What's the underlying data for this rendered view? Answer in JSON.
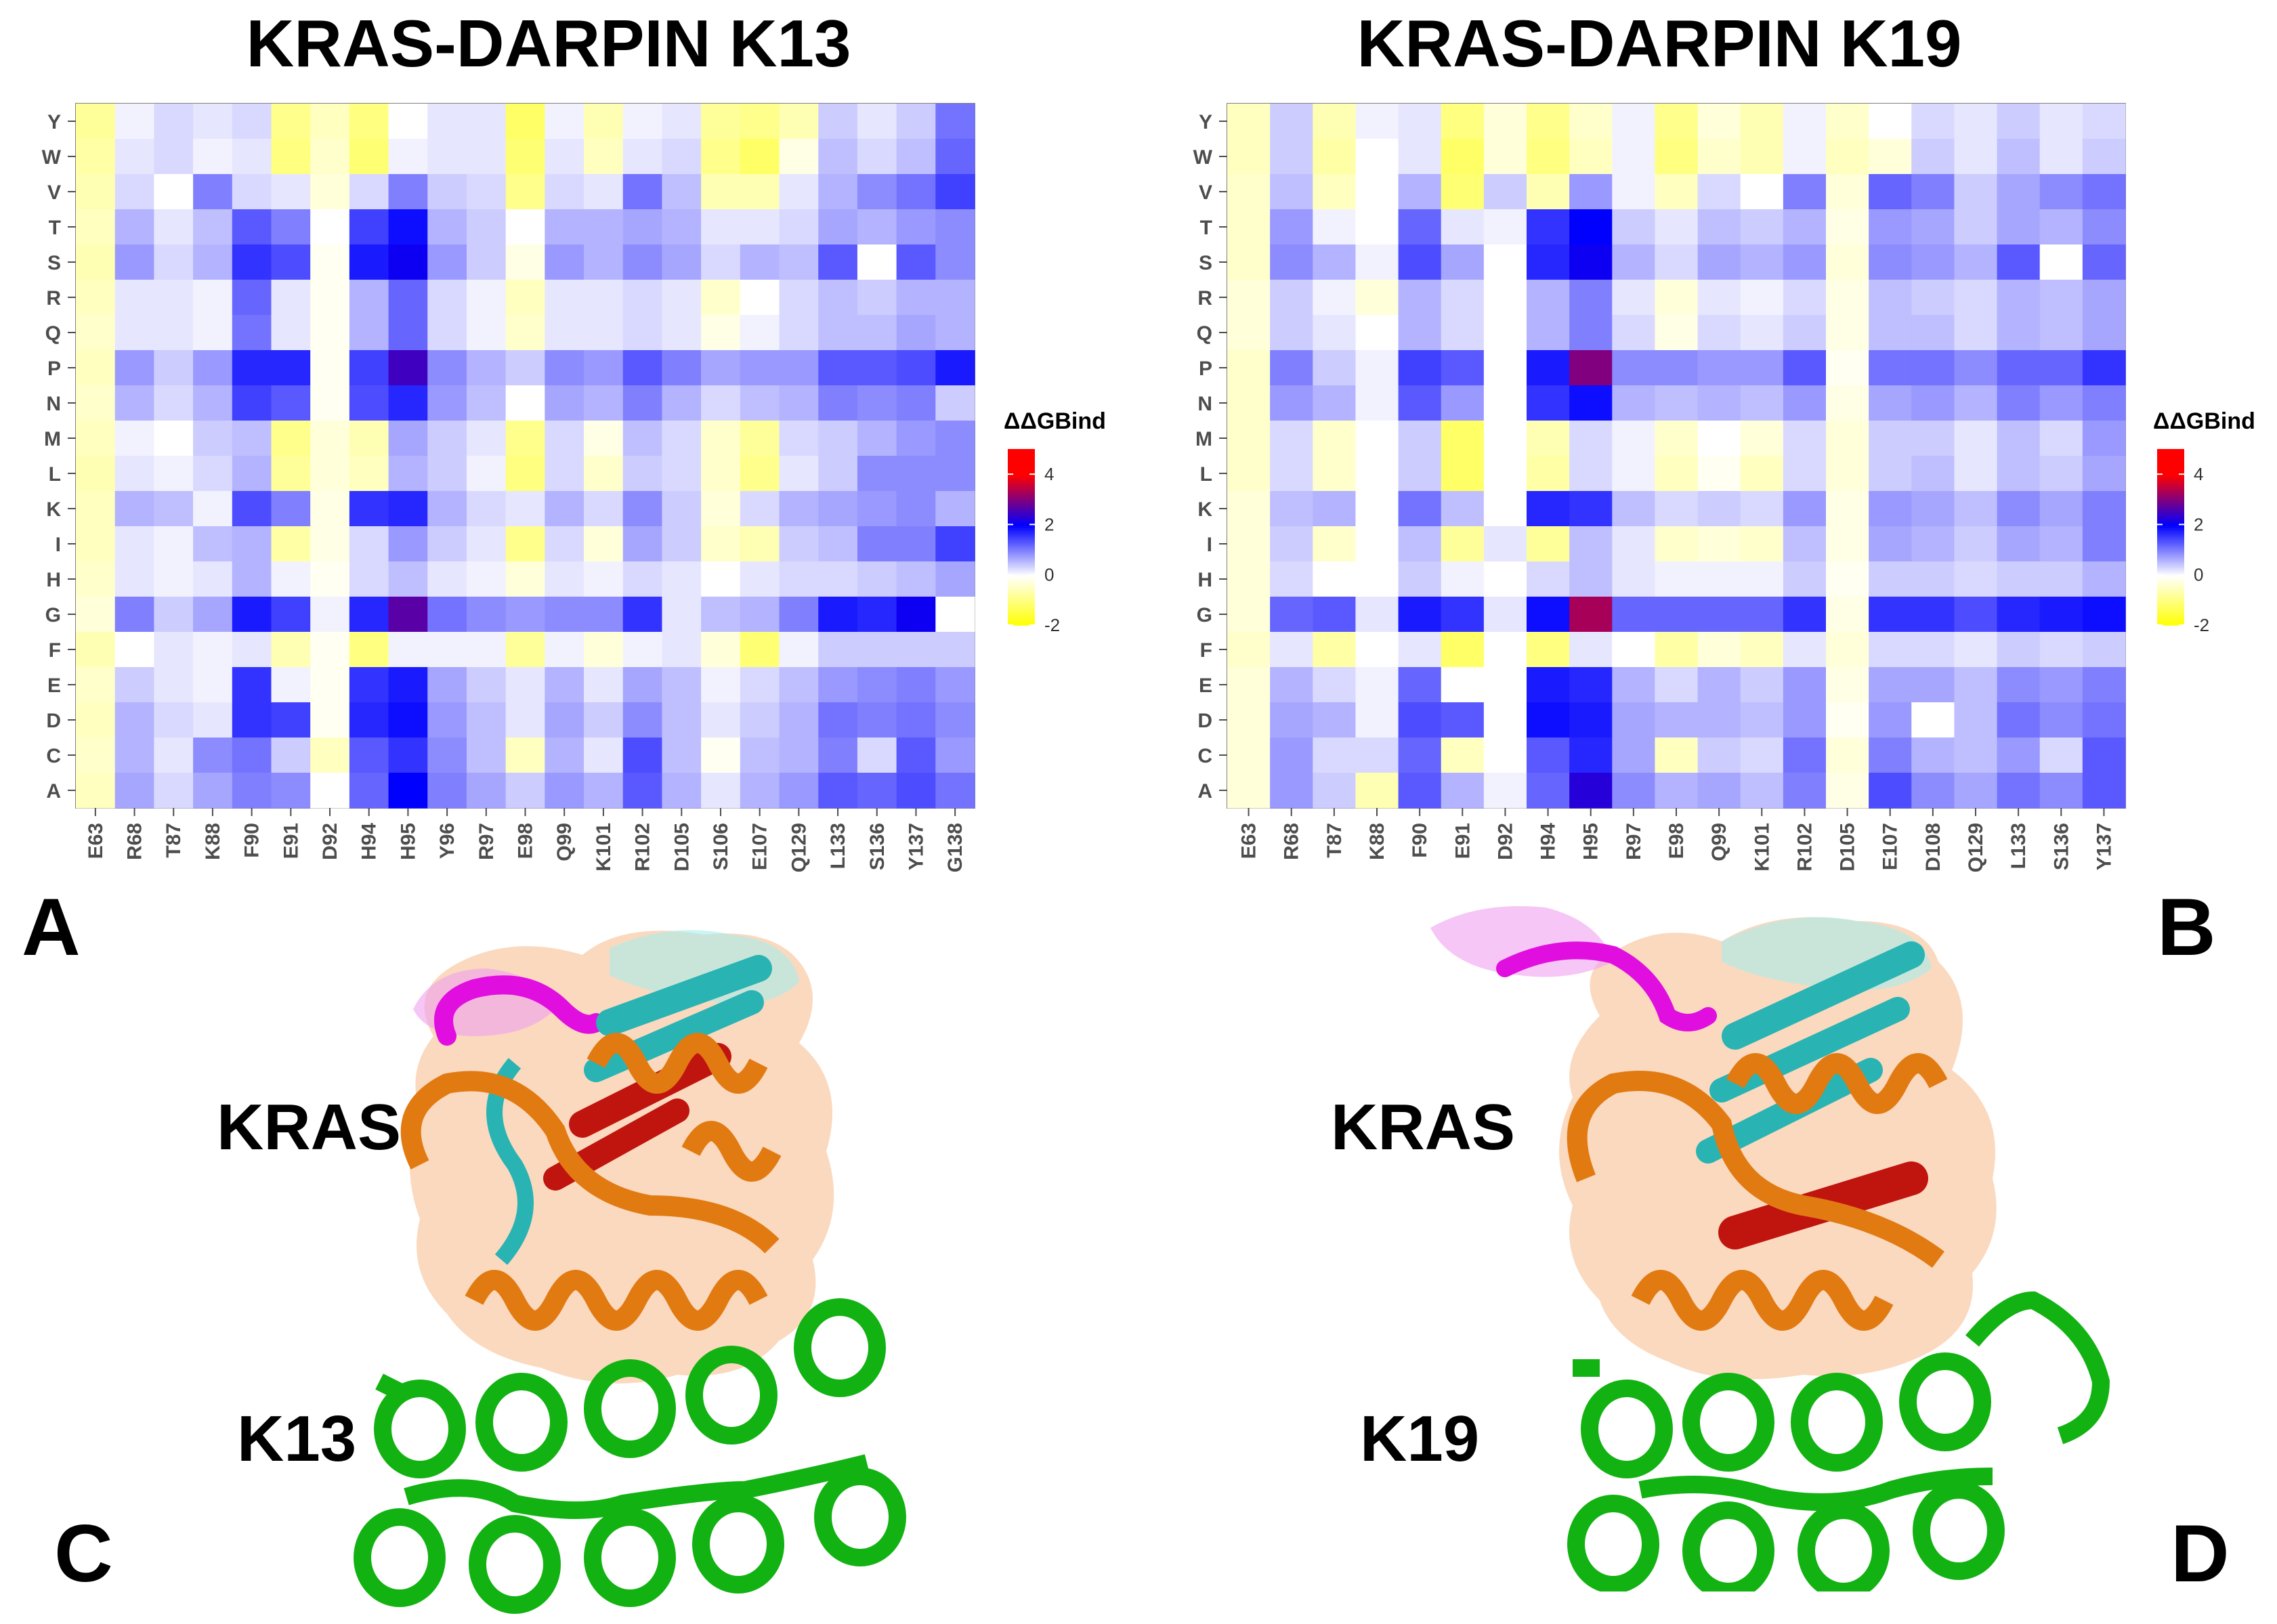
{
  "panels": {
    "a": "A",
    "b": "B",
    "c": "C",
    "d": "D"
  },
  "structure_labels": {
    "c_protein": "KRAS",
    "c_partner": "K13",
    "d_protein": "KRAS",
    "d_partner": "K19"
  },
  "colors": {
    "low": "#ffff00",
    "mid": "#ffffff",
    "high2": "#0000ff",
    "high4": "#ff0000",
    "kras_surface": "#f5b98a",
    "kras_helix": "#e27a12",
    "kras_sheet": "#29b3b3",
    "kras_core": "#c0140f",
    "loop": "#e10ee0",
    "darpin": "#12b212"
  },
  "chart_data": [
    {
      "type": "heatmap",
      "title": "KRAS-DARPIN K13",
      "x": [
        "E63",
        "R68",
        "T87",
        "K88",
        "F90",
        "E91",
        "D92",
        "H94",
        "H95",
        "Y96",
        "R97",
        "E98",
        "Q99",
        "K101",
        "R102",
        "D105",
        "S106",
        "E107",
        "Q129",
        "L133",
        "S136",
        "Y137",
        "G138"
      ],
      "y": [
        "Y",
        "W",
        "V",
        "T",
        "S",
        "R",
        "Q",
        "P",
        "N",
        "M",
        "L",
        "K",
        "I",
        "H",
        "G",
        "F",
        "E",
        "D",
        "C",
        "A"
      ],
      "values": [
        [
          -0.8,
          0.1,
          0.3,
          0.2,
          0.3,
          -0.9,
          -0.5,
          -1.0,
          0.0,
          0.2,
          0.2,
          -1.2,
          0.1,
          -0.6,
          0.1,
          0.2,
          -0.8,
          -0.9,
          -0.6,
          0.4,
          0.2,
          0.4,
          1.1
        ],
        [
          -0.7,
          0.2,
          0.3,
          0.1,
          0.2,
          -1.0,
          -0.4,
          -1.1,
          0.1,
          0.2,
          0.2,
          -1.1,
          0.2,
          -0.5,
          0.2,
          0.3,
          -0.9,
          -1.2,
          -0.2,
          0.5,
          0.3,
          0.5,
          1.2
        ],
        [
          -0.6,
          0.3,
          0.0,
          1.0,
          0.3,
          0.2,
          -0.3,
          0.3,
          1.0,
          0.4,
          0.3,
          -0.9,
          0.3,
          0.2,
          1.1,
          0.5,
          -0.6,
          -0.6,
          0.2,
          0.6,
          0.9,
          1.1,
          1.5
        ],
        [
          -0.5,
          0.6,
          0.2,
          0.5,
          1.3,
          1.0,
          0.0,
          1.5,
          1.9,
          0.6,
          0.4,
          0.0,
          0.6,
          0.6,
          0.7,
          0.6,
          0.2,
          0.2,
          0.3,
          0.7,
          0.6,
          0.8,
          0.9
        ],
        [
          -0.6,
          0.8,
          0.3,
          0.6,
          1.6,
          1.4,
          -0.1,
          1.8,
          2.1,
          0.8,
          0.4,
          -0.2,
          0.8,
          0.6,
          0.9,
          0.7,
          0.3,
          0.6,
          0.5,
          1.3,
          0.0,
          1.3,
          0.9
        ],
        [
          -0.5,
          0.2,
          0.2,
          0.1,
          1.2,
          0.2,
          -0.1,
          0.6,
          1.2,
          0.3,
          0.1,
          -0.5,
          0.2,
          0.2,
          0.3,
          0.2,
          -0.4,
          0.0,
          0.3,
          0.5,
          0.4,
          0.6,
          0.6
        ],
        [
          -0.4,
          0.2,
          0.2,
          0.1,
          1.1,
          0.2,
          -0.1,
          0.6,
          1.2,
          0.3,
          0.1,
          -0.4,
          0.2,
          0.2,
          0.3,
          0.2,
          -0.2,
          0.1,
          0.3,
          0.5,
          0.5,
          0.7,
          0.6
        ],
        [
          -0.5,
          0.8,
          0.4,
          0.8,
          1.7,
          1.7,
          -0.1,
          1.5,
          2.5,
          0.9,
          0.6,
          0.4,
          0.9,
          0.8,
          1.3,
          1.0,
          0.7,
          0.8,
          0.8,
          1.3,
          1.3,
          1.4,
          1.8
        ],
        [
          -0.4,
          0.6,
          0.3,
          0.6,
          1.5,
          1.3,
          -0.1,
          1.4,
          1.7,
          0.8,
          0.5,
          0.0,
          0.7,
          0.6,
          1.0,
          0.6,
          0.3,
          0.5,
          0.6,
          1.0,
          0.9,
          1.0,
          0.4
        ],
        [
          -0.5,
          0.1,
          0.0,
          0.4,
          0.5,
          -0.9,
          -0.3,
          -0.6,
          0.7,
          0.4,
          0.2,
          -0.9,
          0.3,
          -0.2,
          0.5,
          0.3,
          -0.4,
          -0.8,
          0.3,
          0.4,
          0.6,
          0.8,
          0.9
        ],
        [
          -0.6,
          0.2,
          0.1,
          0.3,
          0.6,
          -0.8,
          -0.3,
          -0.5,
          0.6,
          0.4,
          0.1,
          -1.0,
          0.3,
          -0.4,
          0.4,
          0.3,
          -0.4,
          -0.9,
          0.2,
          0.4,
          0.9,
          0.9,
          0.9
        ],
        [
          -0.5,
          0.6,
          0.5,
          0.1,
          1.4,
          1.0,
          -0.2,
          1.6,
          1.7,
          0.6,
          0.3,
          0.2,
          0.6,
          0.3,
          0.9,
          0.4,
          -0.3,
          0.3,
          0.6,
          0.7,
          0.8,
          0.9,
          0.6
        ],
        [
          -0.5,
          0.2,
          0.1,
          0.5,
          0.6,
          -0.7,
          -0.2,
          0.3,
          0.8,
          0.4,
          0.2,
          -0.9,
          0.3,
          -0.3,
          0.7,
          0.4,
          -0.4,
          -0.6,
          0.4,
          0.5,
          1.0,
          1.0,
          1.5
        ],
        [
          -0.4,
          0.2,
          0.1,
          0.2,
          0.6,
          0.1,
          -0.1,
          0.3,
          0.5,
          0.2,
          0.1,
          -0.3,
          0.2,
          0.1,
          0.3,
          0.2,
          0.0,
          0.2,
          0.3,
          0.3,
          0.4,
          0.5,
          0.7
        ],
        [
          -0.3,
          1.0,
          0.4,
          0.7,
          1.8,
          1.5,
          0.1,
          1.7,
          2.7,
          1.1,
          0.9,
          0.8,
          0.9,
          0.9,
          1.6,
          0.2,
          0.5,
          0.6,
          1.0,
          1.8,
          1.7,
          2.1,
          0.0
        ],
        [
          -0.6,
          0.0,
          0.2,
          0.1,
          0.2,
          -0.6,
          -0.1,
          -1.0,
          0.1,
          0.1,
          0.1,
          -0.8,
          0.1,
          -0.3,
          0.1,
          0.2,
          -0.3,
          -1.1,
          0.1,
          0.4,
          0.4,
          0.4,
          0.4
        ],
        [
          -0.4,
          0.4,
          0.2,
          0.1,
          1.6,
          0.1,
          -0.1,
          1.6,
          1.8,
          0.7,
          0.4,
          0.2,
          0.6,
          0.2,
          0.7,
          0.5,
          0.1,
          0.3,
          0.5,
          0.8,
          0.9,
          1.0,
          0.8
        ],
        [
          -0.5,
          0.6,
          0.3,
          0.2,
          1.6,
          1.5,
          -0.1,
          1.7,
          1.9,
          0.8,
          0.5,
          0.2,
          0.7,
          0.4,
          0.9,
          0.5,
          0.2,
          0.4,
          0.6,
          1.1,
          1.0,
          1.1,
          0.9
        ],
        [
          -0.4,
          0.6,
          0.2,
          0.9,
          1.1,
          0.4,
          -0.5,
          1.3,
          1.6,
          0.9,
          0.5,
          -0.5,
          0.6,
          0.2,
          1.4,
          0.5,
          -0.1,
          0.5,
          0.6,
          1.0,
          0.3,
          1.3,
          0.8
        ],
        [
          -0.5,
          0.7,
          0.3,
          0.7,
          1.0,
          0.9,
          0.0,
          1.2,
          2.0,
          1.0,
          0.7,
          0.4,
          0.8,
          0.6,
          1.3,
          0.6,
          0.2,
          0.6,
          0.8,
          1.3,
          1.2,
          1.4,
          1.1
        ]
      ],
      "colorbar": {
        "title": "ΔΔGBind",
        "range": [
          -2,
          5
        ],
        "ticks": [
          "4",
          "2",
          "0",
          "-2"
        ],
        "tick_values": [
          4,
          2,
          0,
          -2
        ]
      }
    },
    {
      "type": "heatmap",
      "title": "KRAS-DARPIN K19",
      "x": [
        "E63",
        "R68",
        "T87",
        "K88",
        "F90",
        "E91",
        "D92",
        "H94",
        "H95",
        "R97",
        "E98",
        "Q99",
        "K101",
        "R102",
        "D105",
        "E107",
        "D108",
        "Q129",
        "L133",
        "S136",
        "Y137"
      ],
      "y": [
        "Y",
        "W",
        "V",
        "T",
        "S",
        "R",
        "Q",
        "P",
        "N",
        "M",
        "L",
        "K",
        "I",
        "H",
        "G",
        "F",
        "E",
        "D",
        "C",
        "A"
      ],
      "values": [
        [
          -0.5,
          0.4,
          -0.6,
          0.1,
          0.2,
          -1.0,
          -0.3,
          -0.9,
          -0.4,
          0.1,
          -0.9,
          -0.3,
          -0.6,
          0.1,
          -0.4,
          0.0,
          0.3,
          0.2,
          0.4,
          0.2,
          0.3
        ],
        [
          -0.5,
          0.4,
          -0.7,
          0.0,
          0.2,
          -1.2,
          -0.3,
          -1.0,
          -0.5,
          0.1,
          -1.0,
          -0.4,
          -0.6,
          0.1,
          -0.5,
          -0.3,
          0.4,
          0.2,
          0.5,
          0.2,
          0.4
        ],
        [
          -0.4,
          0.5,
          -0.5,
          0.0,
          0.6,
          -1.1,
          0.4,
          -0.6,
          0.8,
          0.1,
          -0.5,
          0.3,
          0.0,
          1.0,
          -0.3,
          1.2,
          1.0,
          0.4,
          0.7,
          0.9,
          1.1
        ],
        [
          -0.4,
          0.8,
          0.1,
          0.0,
          1.2,
          0.2,
          0.1,
          1.6,
          2.0,
          0.4,
          0.2,
          0.5,
          0.4,
          0.6,
          -0.2,
          0.8,
          0.7,
          0.4,
          0.7,
          0.6,
          0.9
        ],
        [
          -0.4,
          0.9,
          0.6,
          0.1,
          1.4,
          0.7,
          0.0,
          1.7,
          2.1,
          0.6,
          0.3,
          0.7,
          0.6,
          0.8,
          -0.3,
          0.9,
          0.8,
          0.6,
          1.3,
          0.0,
          1.2
        ],
        [
          -0.3,
          0.4,
          0.1,
          -0.3,
          0.6,
          0.3,
          0.0,
          0.6,
          1.0,
          0.2,
          -0.3,
          0.2,
          0.1,
          0.3,
          -0.2,
          0.5,
          0.4,
          0.3,
          0.6,
          0.5,
          0.7
        ],
        [
          -0.3,
          0.4,
          0.2,
          0.0,
          0.6,
          0.3,
          0.0,
          0.6,
          1.0,
          0.3,
          -0.2,
          0.3,
          0.2,
          0.4,
          -0.2,
          0.5,
          0.5,
          0.3,
          0.6,
          0.5,
          0.7
        ],
        [
          -0.4,
          1.0,
          0.4,
          0.1,
          1.5,
          1.3,
          0.0,
          1.8,
          3.0,
          0.9,
          0.9,
          0.8,
          0.8,
          1.3,
          -0.1,
          1.1,
          1.1,
          0.9,
          1.2,
          1.2,
          1.6
        ],
        [
          -0.4,
          0.8,
          0.6,
          0.1,
          1.3,
          0.8,
          0.0,
          1.6,
          1.9,
          0.6,
          0.5,
          0.6,
          0.5,
          0.8,
          -0.2,
          0.7,
          0.8,
          0.6,
          1.0,
          0.8,
          1.0
        ],
        [
          -0.4,
          0.3,
          -0.4,
          0.0,
          0.4,
          -1.2,
          0.0,
          -0.6,
          0.3,
          0.1,
          -0.4,
          0.0,
          -0.3,
          0.3,
          -0.3,
          0.4,
          0.4,
          0.2,
          0.5,
          0.3,
          0.8
        ],
        [
          -0.4,
          0.3,
          -0.4,
          0.0,
          0.4,
          -1.2,
          0.0,
          -0.7,
          0.3,
          0.1,
          -0.5,
          -0.1,
          -0.5,
          0.3,
          -0.3,
          0.4,
          0.5,
          0.2,
          0.5,
          0.4,
          0.7
        ],
        [
          -0.3,
          0.5,
          0.6,
          0.0,
          1.1,
          0.5,
          0.0,
          1.7,
          1.6,
          0.5,
          0.3,
          0.4,
          0.3,
          0.8,
          -0.2,
          0.8,
          0.7,
          0.5,
          0.9,
          0.7,
          1.0
        ],
        [
          -0.3,
          0.4,
          -0.4,
          0.0,
          0.5,
          -0.8,
          0.2,
          -0.8,
          0.5,
          0.2,
          -0.4,
          -0.3,
          -0.4,
          0.5,
          -0.2,
          0.7,
          0.6,
          0.4,
          0.7,
          0.6,
          1.0
        ],
        [
          -0.3,
          0.3,
          0.0,
          0.0,
          0.4,
          0.1,
          0.0,
          0.3,
          0.5,
          0.2,
          0.1,
          0.1,
          0.1,
          0.4,
          -0.1,
          0.4,
          0.4,
          0.3,
          0.4,
          0.4,
          0.6
        ],
        [
          -0.3,
          1.2,
          1.3,
          0.2,
          1.8,
          1.6,
          0.2,
          1.9,
          3.3,
          1.2,
          1.2,
          1.2,
          1.2,
          1.6,
          -0.2,
          1.6,
          1.6,
          1.4,
          1.7,
          1.8,
          1.9
        ],
        [
          -0.4,
          0.2,
          -0.7,
          0.0,
          0.2,
          -1.2,
          0.0,
          -1.0,
          0.2,
          0.0,
          -0.7,
          -0.3,
          -0.5,
          0.2,
          -0.3,
          0.3,
          0.3,
          0.2,
          0.4,
          0.3,
          0.4
        ],
        [
          -0.3,
          0.6,
          0.3,
          0.1,
          1.2,
          0.0,
          0.0,
          1.8,
          1.7,
          0.6,
          0.3,
          0.6,
          0.4,
          0.8,
          -0.2,
          0.7,
          0.7,
          0.5,
          0.9,
          0.8,
          1.0
        ],
        [
          -0.3,
          0.7,
          0.6,
          0.1,
          1.4,
          1.3,
          0.0,
          1.9,
          1.8,
          0.7,
          0.6,
          0.6,
          0.5,
          0.8,
          -0.1,
          0.8,
          0.0,
          0.5,
          1.1,
          0.9,
          1.1
        ],
        [
          -0.3,
          0.8,
          0.3,
          0.3,
          1.2,
          -0.5,
          0.0,
          1.3,
          1.7,
          0.7,
          -0.5,
          0.4,
          0.3,
          1.1,
          -0.3,
          1.0,
          0.6,
          0.5,
          0.8,
          0.3,
          1.3
        ],
        [
          -0.3,
          0.8,
          0.4,
          -0.6,
          1.3,
          0.6,
          0.1,
          1.2,
          2.3,
          0.9,
          0.6,
          0.7,
          0.5,
          1.0,
          -0.2,
          1.4,
          0.9,
          0.7,
          1.1,
          0.9,
          1.3
        ]
      ],
      "colorbar": {
        "title": "ΔΔGBind",
        "range": [
          -2,
          5
        ],
        "ticks": [
          "4",
          "2",
          "0",
          "-2"
        ],
        "tick_values": [
          4,
          2,
          0,
          -2
        ]
      }
    }
  ]
}
